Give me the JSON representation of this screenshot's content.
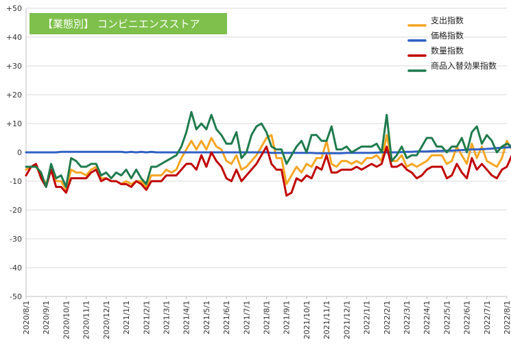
{
  "chart_data": {
    "type": "line",
    "title": "【業態別】 コンビニエンスストア",
    "title_bg_color": "#7ec04b",
    "ylim": [
      -50,
      50
    ],
    "y_ticks": [
      50,
      40,
      30,
      20,
      10,
      0,
      -10,
      -20,
      -30,
      -40,
      -50
    ],
    "y_tick_labels": [
      "+50",
      "+40",
      "+30",
      "+20",
      "+10",
      "0",
      "-10",
      "-20",
      "-30",
      "-40",
      "-50"
    ],
    "grid": "horizontal",
    "legend_position": "top-right",
    "x_tick_labels": [
      "2020/8/1",
      "2020/9/1",
      "2020/10/1",
      "2020/11/1",
      "2020/12/1",
      "2021/1/1",
      "2021/2/1",
      "2021/3/1",
      "2021/4/1",
      "2021/5/1",
      "2021/6/1",
      "2021/7/1",
      "2021/8/1",
      "2021/9/1",
      "2021/10/1",
      "2021/11/1",
      "2021/12/1",
      "2022/1/1",
      "2022/2/1",
      "2022/3/1",
      "2022/4/1",
      "2022/5/1",
      "2022/6/1",
      "2022/7/1",
      "2022/8/1"
    ],
    "points_per_month": 4,
    "series": [
      {
        "name": "支出指数",
        "color": "#f5a623",
        "values": [
          -6,
          -5,
          -5,
          -8,
          -11,
          -6,
          -10,
          -10,
          -13,
          -6,
          -7,
          -7,
          -8,
          -6,
          -5,
          -9,
          -9,
          -10,
          -10,
          -11,
          -10,
          -11,
          -10,
          -10,
          -12,
          -8,
          -8,
          -8,
          -6,
          -7,
          -6,
          -2,
          1,
          4,
          1,
          4,
          1,
          5,
          2,
          1,
          -3,
          -4,
          -1,
          -6,
          -5,
          -3,
          -1,
          2,
          5,
          6,
          -2,
          -2,
          -11,
          -8,
          -5,
          -7,
          -4,
          -5,
          -2,
          -2,
          4,
          -4,
          -5,
          -3,
          -3,
          -4,
          -3,
          -4,
          -2,
          -2,
          -1,
          -3,
          6,
          -3,
          -3,
          -1,
          -5,
          -4,
          -5,
          -4,
          -3,
          -1,
          -1,
          -1,
          -4,
          -3,
          2,
          -1,
          -4,
          3,
          -2,
          2,
          -3,
          -4,
          -5,
          -2,
          4,
          1,
          -4,
          -7,
          -2,
          -6
        ]
      },
      {
        "name": "価格指数",
        "color": "#2f5fc4",
        "values": [
          0,
          0,
          0,
          0,
          0,
          0,
          0,
          0.2,
          0.2,
          0.2,
          0.2,
          0.2,
          0.2,
          0.2,
          0.2,
          0.2,
          0.2,
          0.2,
          0.2,
          0.2,
          0,
          0.2,
          0,
          0.2,
          0,
          0.2,
          0,
          0,
          0,
          0,
          0,
          0,
          0,
          0,
          0,
          0,
          0,
          0,
          0,
          0,
          0,
          0,
          0,
          0,
          0,
          0,
          0,
          0,
          0,
          -0.2,
          -0.2,
          -0.2,
          -0.2,
          -0.2,
          -0.2,
          -0.2,
          -0.2,
          -0.2,
          -0.3,
          -0.3,
          -0.3,
          -0.3,
          -0.3,
          -0.3,
          -0.2,
          -0.2,
          -0.2,
          -0.2,
          -0.2,
          -0.2,
          -0.1,
          0,
          0,
          0,
          0,
          0.1,
          0.2,
          0.2,
          0.3,
          0.3,
          0.3,
          0.4,
          0.5,
          0.5,
          0.6,
          0.6,
          0.7,
          0.8,
          0.9,
          1.0,
          1.0,
          1.1,
          1.2,
          1.3,
          1.5,
          1.6,
          1.7,
          1.8,
          1.8,
          1.8,
          1.8,
          1.8
        ]
      },
      {
        "name": "数量指数",
        "color": "#c00000",
        "values": [
          -8,
          -5,
          -4,
          -9,
          -12,
          -6,
          -12,
          -12,
          -14,
          -9,
          -9,
          -9,
          -9,
          -7,
          -6,
          -10,
          -9,
          -10,
          -10,
          -11,
          -11,
          -12,
          -10,
          -11,
          -13,
          -10,
          -10,
          -10,
          -8,
          -8,
          -8,
          -6,
          -4,
          -4,
          -6,
          -1,
          -5,
          0,
          -3,
          -5,
          -9,
          -10,
          -6,
          -10,
          -8,
          -6,
          -4,
          -1,
          2,
          -4,
          -6,
          -6,
          -15,
          -14,
          -9,
          -10,
          -8,
          -9,
          -5,
          -6,
          -1,
          -7,
          -7,
          -6,
          -6,
          -6,
          -5,
          -6,
          -5,
          -4,
          -5,
          -4,
          2,
          -5,
          -5,
          -4,
          -6,
          -7,
          -9,
          -8,
          -6,
          -5,
          -5,
          -5,
          -9,
          -8,
          -4,
          -7,
          -9,
          -2,
          -6,
          -4,
          -6,
          -8,
          -9,
          -6,
          -5,
          -1,
          -5,
          -10,
          -4,
          -8
        ]
      },
      {
        "name": "商品入替効果指数",
        "color": "#1f7a4d",
        "values": [
          -5,
          -5,
          -5,
          -7,
          -12,
          -4,
          -9,
          -8,
          -12,
          -2,
          -3,
          -5,
          -5,
          -4,
          -4,
          -8,
          -7,
          -9,
          -7,
          -8,
          -6,
          -9,
          -6,
          -9,
          -11,
          -5,
          -5,
          -4,
          -3,
          -2,
          -1,
          2,
          7,
          14,
          8,
          10,
          8,
          13,
          8,
          6,
          3,
          3,
          7,
          -2,
          0,
          6,
          9,
          10,
          7,
          2,
          1,
          1,
          -4,
          -1,
          2,
          4,
          0,
          6,
          6,
          4,
          4,
          9,
          1,
          1,
          2,
          0,
          1,
          2,
          2,
          2,
          3,
          0,
          13,
          -3,
          -1,
          2,
          -2,
          -1,
          -1,
          2,
          5,
          5,
          2,
          2,
          0,
          2,
          2,
          5,
          0,
          7,
          9,
          3,
          6,
          4,
          0,
          2,
          3,
          2,
          1,
          -2,
          6,
          -1
        ]
      }
    ]
  }
}
